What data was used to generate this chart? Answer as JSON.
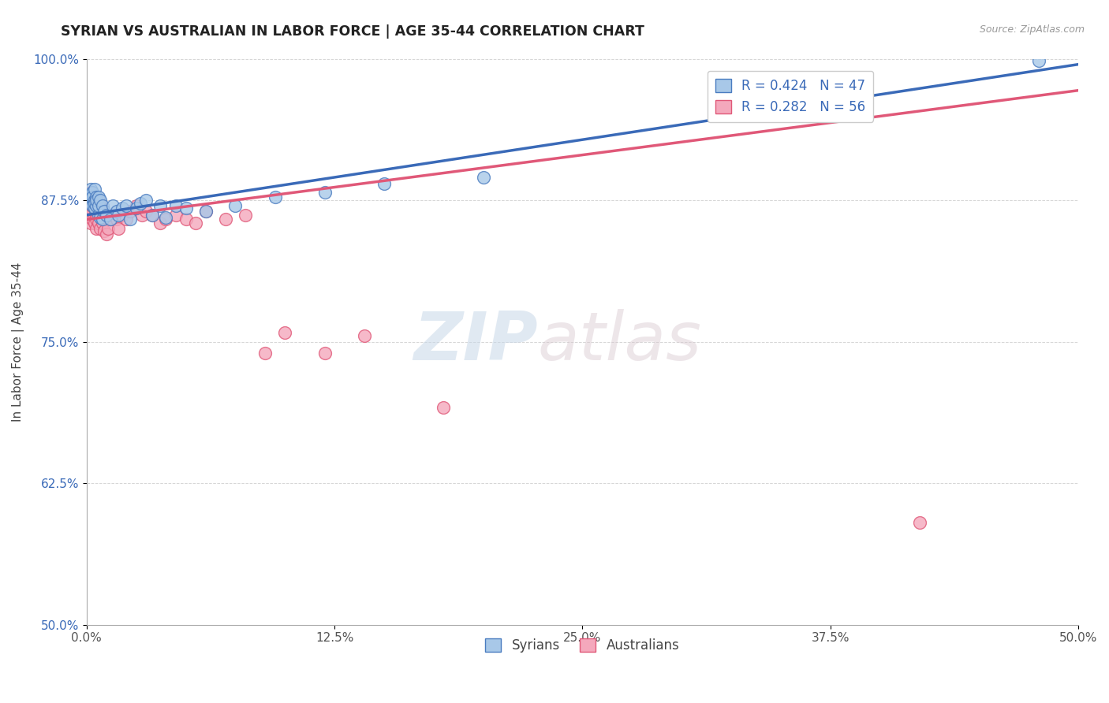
{
  "title": "SYRIAN VS AUSTRALIAN IN LABOR FORCE | AGE 35-44 CORRELATION CHART",
  "source_text": "Source: ZipAtlas.com",
  "ylabel": "In Labor Force | Age 35-44",
  "xlim": [
    0.0,
    0.5
  ],
  "ylim": [
    0.5,
    1.0
  ],
  "xtick_labels": [
    "0.0%",
    "12.5%",
    "25.0%",
    "37.5%",
    "50.0%"
  ],
  "xtick_vals": [
    0.0,
    0.125,
    0.25,
    0.375,
    0.5
  ],
  "ytick_labels": [
    "50.0%",
    "62.5%",
    "75.0%",
    "87.5%",
    "100.0%"
  ],
  "ytick_vals": [
    0.5,
    0.625,
    0.75,
    0.875,
    1.0
  ],
  "blue_R": 0.424,
  "blue_N": 47,
  "pink_R": 0.282,
  "pink_N": 56,
  "blue_color": "#A8C8E8",
  "pink_color": "#F4A8BC",
  "blue_edge_color": "#4A7CC0",
  "pink_edge_color": "#E05878",
  "blue_line_color": "#3A6AB8",
  "pink_line_color": "#E05878",
  "legend_label_blue": "Syrians",
  "legend_label_pink": "Australians",
  "watermark_zip": "ZIP",
  "watermark_atlas": "atlas",
  "blue_points_x": [
    0.001,
    0.001,
    0.002,
    0.002,
    0.002,
    0.003,
    0.003,
    0.003,
    0.003,
    0.004,
    0.004,
    0.004,
    0.004,
    0.005,
    0.005,
    0.005,
    0.006,
    0.006,
    0.006,
    0.007,
    0.007,
    0.008,
    0.008,
    0.009,
    0.01,
    0.012,
    0.013,
    0.015,
    0.016,
    0.018,
    0.02,
    0.022,
    0.025,
    0.027,
    0.03,
    0.033,
    0.037,
    0.04,
    0.045,
    0.05,
    0.06,
    0.075,
    0.095,
    0.12,
    0.15,
    0.2,
    0.48
  ],
  "blue_points_y": [
    0.875,
    0.88,
    0.878,
    0.885,
    0.872,
    0.875,
    0.87,
    0.882,
    0.878,
    0.875,
    0.868,
    0.872,
    0.885,
    0.87,
    0.878,
    0.875,
    0.862,
    0.87,
    0.878,
    0.86,
    0.875,
    0.858,
    0.87,
    0.865,
    0.862,
    0.858,
    0.87,
    0.865,
    0.862,
    0.868,
    0.87,
    0.858,
    0.868,
    0.872,
    0.875,
    0.862,
    0.87,
    0.86,
    0.87,
    0.868,
    0.865,
    0.87,
    0.878,
    0.882,
    0.89,
    0.895,
    0.998
  ],
  "pink_points_x": [
    0.001,
    0.001,
    0.002,
    0.002,
    0.002,
    0.002,
    0.003,
    0.003,
    0.003,
    0.003,
    0.004,
    0.004,
    0.004,
    0.004,
    0.005,
    0.005,
    0.005,
    0.005,
    0.006,
    0.006,
    0.006,
    0.007,
    0.007,
    0.007,
    0.008,
    0.008,
    0.009,
    0.009,
    0.01,
    0.01,
    0.011,
    0.012,
    0.013,
    0.015,
    0.016,
    0.018,
    0.02,
    0.022,
    0.025,
    0.028,
    0.03,
    0.033,
    0.037,
    0.04,
    0.045,
    0.05,
    0.055,
    0.06,
    0.07,
    0.08,
    0.09,
    0.1,
    0.12,
    0.14,
    0.18,
    0.42
  ],
  "pink_points_y": [
    0.875,
    0.868,
    0.87,
    0.855,
    0.872,
    0.882,
    0.865,
    0.858,
    0.875,
    0.87,
    0.862,
    0.875,
    0.855,
    0.868,
    0.85,
    0.862,
    0.875,
    0.858,
    0.855,
    0.868,
    0.875,
    0.85,
    0.862,
    0.87,
    0.855,
    0.862,
    0.848,
    0.858,
    0.845,
    0.862,
    0.85,
    0.858,
    0.862,
    0.858,
    0.85,
    0.862,
    0.858,
    0.865,
    0.87,
    0.862,
    0.865,
    0.862,
    0.855,
    0.858,
    0.862,
    0.858,
    0.855,
    0.865,
    0.858,
    0.862,
    0.74,
    0.758,
    0.74,
    0.755,
    0.692,
    0.59
  ],
  "blue_line_x": [
    0.0,
    0.5
  ],
  "blue_line_y": [
    0.862,
    0.995
  ],
  "pink_line_x": [
    0.0,
    0.5
  ],
  "pink_line_y": [
    0.858,
    0.972
  ]
}
